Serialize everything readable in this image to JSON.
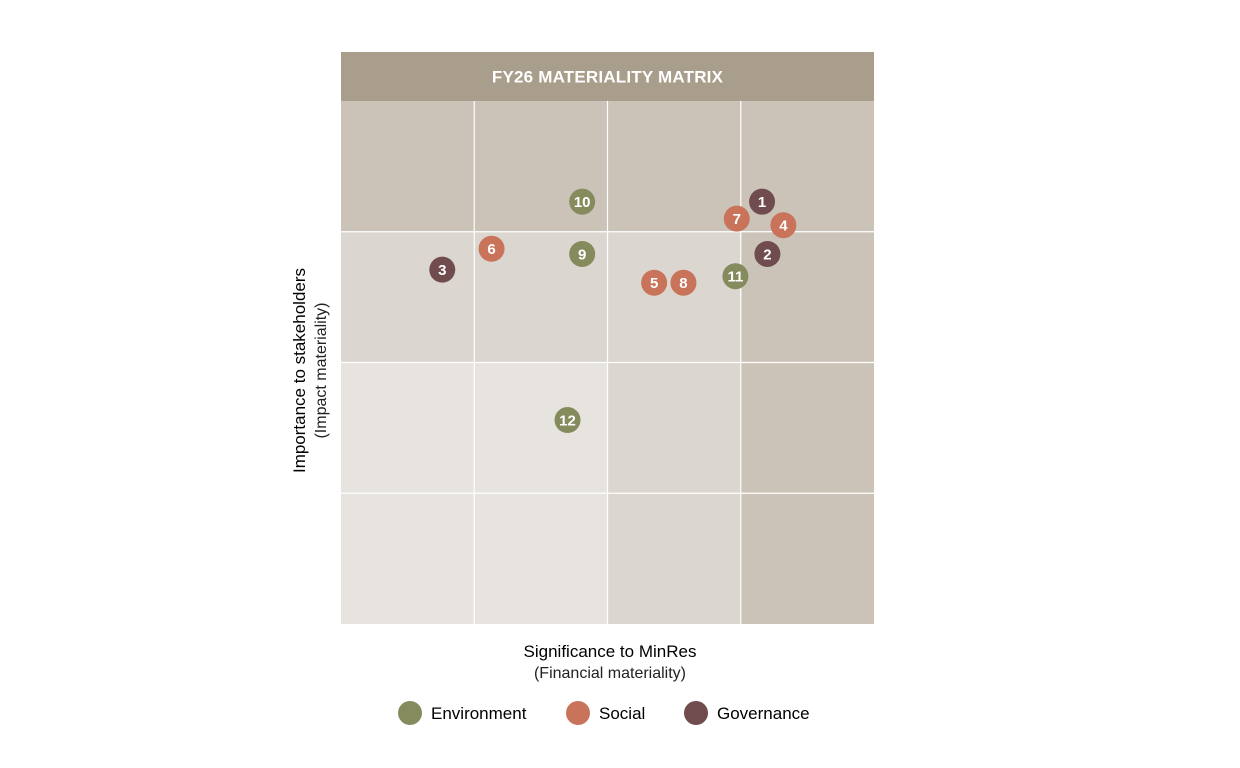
{
  "chart_data": {
    "type": "scatter",
    "title": "FY26 MATERIALITY MATRIX",
    "xlabel": "Significance to MinRes",
    "xlabel_sub": "(Financial materiality)",
    "ylabel": "Importance to stakeholders",
    "ylabel_sub": "(Impact materiality)",
    "xlim": [
      0,
      4
    ],
    "ylim": [
      0,
      4
    ],
    "grid": true,
    "legend_position": "bottom",
    "cell_shading": [
      [
        "#e7e3de",
        "#e7e3de",
        "#dbd6cf",
        "#cbc3b8"
      ],
      [
        "#e7e3de",
        "#e7e3de",
        "#dbd6cf",
        "#cbc3b8"
      ],
      [
        "#dbd6cf",
        "#dbd6cf",
        "#dbd6cf",
        "#cbc3b8"
      ],
      [
        "#cbc3b8",
        "#cbc3b8",
        "#cbc3b8",
        "#cbc3b8"
      ]
    ],
    "title_bar_color": "#a89e8b",
    "series": [
      {
        "name": "Environment",
        "color": "#868b5d",
        "points": [
          {
            "label": "10",
            "x": 1.81,
            "y": 3.23
          },
          {
            "label": "9",
            "x": 1.81,
            "y": 2.83
          },
          {
            "label": "11",
            "x": 2.96,
            "y": 2.66
          },
          {
            "label": "12",
            "x": 1.7,
            "y": 1.56
          }
        ]
      },
      {
        "name": "Social",
        "color": "#c8735a",
        "points": [
          {
            "label": "7",
            "x": 2.97,
            "y": 3.1
          },
          {
            "label": "4",
            "x": 3.32,
            "y": 3.05
          },
          {
            "label": "6",
            "x": 1.13,
            "y": 2.87
          },
          {
            "label": "5",
            "x": 2.35,
            "y": 2.61
          },
          {
            "label": "8",
            "x": 2.57,
            "y": 2.61
          }
        ]
      },
      {
        "name": "Governance",
        "color": "#704c4e",
        "points": [
          {
            "label": "1",
            "x": 3.16,
            "y": 3.23
          },
          {
            "label": "2",
            "x": 3.2,
            "y": 2.83
          },
          {
            "label": "3",
            "x": 0.76,
            "y": 2.71
          }
        ]
      }
    ]
  }
}
